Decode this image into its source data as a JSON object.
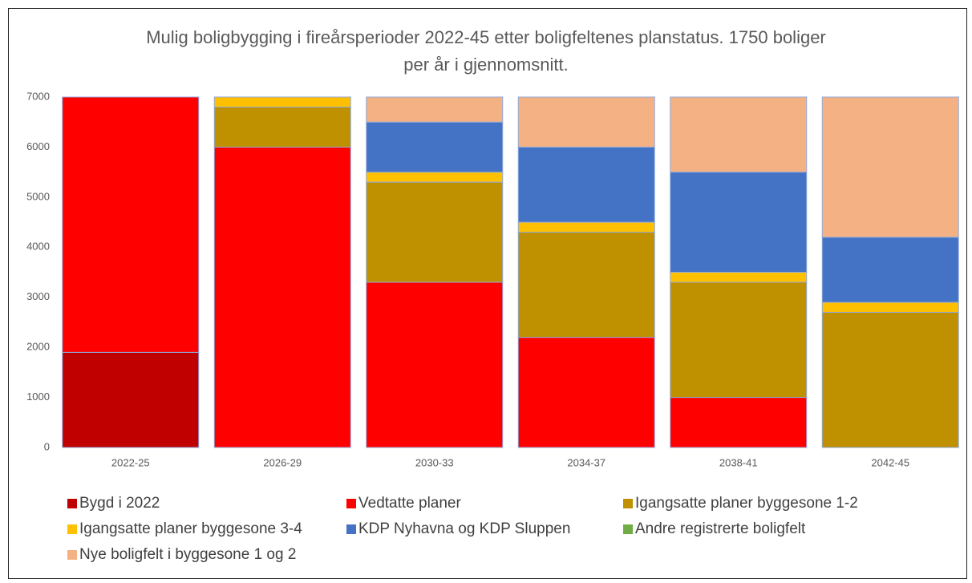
{
  "chart_data": {
    "type": "stacked_bar",
    "title": "Mulig boligbygging i fireårsperioder 2022-45 etter boligfeltenes planstatus. 1750 boliger per år i gjennomsnitt.",
    "categories": [
      "2022-25",
      "2026-29",
      "2030-33",
      "2034-37",
      "2038-41",
      "2042-45"
    ],
    "series": [
      {
        "name": "Bygd i 2022",
        "color": "#c00000",
        "values": [
          1900,
          0,
          0,
          0,
          0,
          0
        ]
      },
      {
        "name": "Vedtatte planer",
        "color": "#ff0000",
        "values": [
          5100,
          6000,
          3300,
          2200,
          1000,
          0
        ]
      },
      {
        "name": "Igangsatte planer byggesone 1-2",
        "color": "#bf9000",
        "values": [
          0,
          800,
          2000,
          2100,
          2300,
          2700
        ]
      },
      {
        "name": "Igangsatte planer byggesone 3-4",
        "color": "#ffc000",
        "values": [
          0,
          200,
          200,
          200,
          200,
          200
        ]
      },
      {
        "name": "KDP Nyhavna og KDP Sluppen",
        "color": "#4472c4",
        "values": [
          0,
          0,
          1000,
          1500,
          2000,
          1300
        ]
      },
      {
        "name": "Andre registrerte boligfelt",
        "color": "#70ad47",
        "values": [
          0,
          0,
          0,
          0,
          0,
          0
        ]
      },
      {
        "name": "Nye boligfelt i byggesone 1 og 2",
        "color": "#f4b183",
        "values": [
          0,
          0,
          500,
          1000,
          1500,
          2800
        ]
      }
    ],
    "ylim": [
      0,
      7000
    ],
    "yticks": [
      0,
      1000,
      2000,
      3000,
      4000,
      5000,
      6000,
      7000
    ],
    "grid": false
  }
}
